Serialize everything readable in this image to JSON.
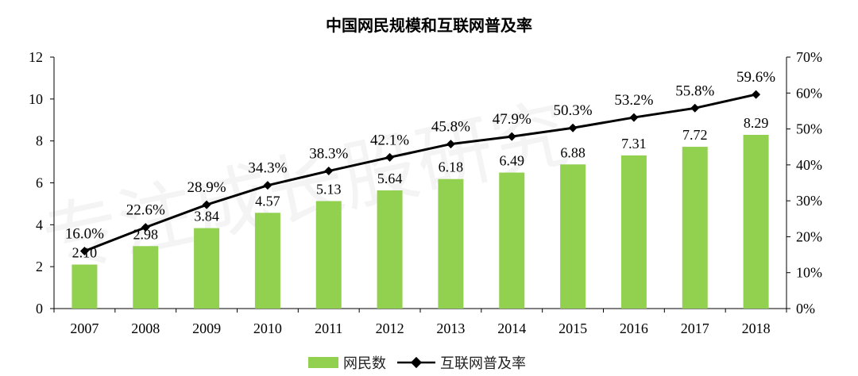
{
  "chart_data": {
    "type": "bar+line",
    "title": "中国网民规模和互联网普及率",
    "categories": [
      "2007",
      "2008",
      "2009",
      "2010",
      "2011",
      "2012",
      "2013",
      "2014",
      "2015",
      "2016",
      "2017",
      "2018"
    ],
    "series": [
      {
        "name": "网民数",
        "type": "bar",
        "axis": "left",
        "color": "#92D050",
        "values": [
          2.1,
          2.98,
          3.84,
          4.57,
          5.13,
          5.64,
          6.18,
          6.49,
          6.88,
          7.31,
          7.72,
          8.29
        ],
        "labels": [
          "2.10",
          "2.98",
          "3.84",
          "4.57",
          "5.13",
          "5.64",
          "6.18",
          "6.49",
          "6.88",
          "7.31",
          "7.72",
          "8.29"
        ]
      },
      {
        "name": "互联网普及率",
        "type": "line",
        "axis": "right",
        "color": "#000000",
        "values": [
          16.0,
          22.6,
          28.9,
          34.3,
          38.3,
          42.1,
          45.8,
          47.9,
          50.3,
          53.2,
          55.8,
          59.6
        ],
        "labels": [
          "16.0%",
          "22.6%",
          "28.9%",
          "34.3%",
          "38.3%",
          "42.1%",
          "45.8%",
          "47.9%",
          "50.3%",
          "53.2%",
          "55.8%",
          "59.6%"
        ]
      }
    ],
    "y_left": {
      "min": 0,
      "max": 12,
      "ticks": [
        "0",
        "2",
        "4",
        "6",
        "8",
        "10",
        "12"
      ]
    },
    "y_right": {
      "min": 0,
      "max": 70,
      "ticks": [
        "0%",
        "10%",
        "20%",
        "30%",
        "40%",
        "50%",
        "60%",
        "70%"
      ]
    },
    "grid": false,
    "legend_position": "bottom"
  },
  "watermark": "专注成长股研究"
}
